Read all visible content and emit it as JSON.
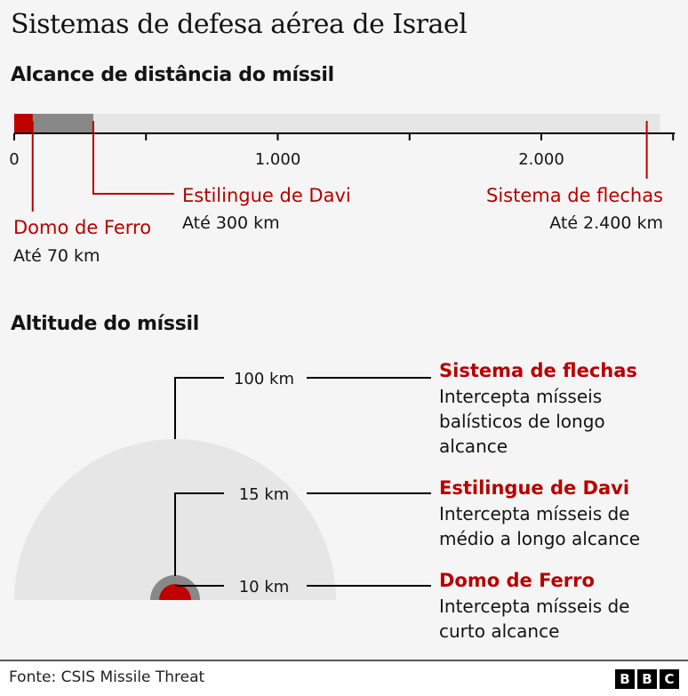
{
  "title": "Sistemas de defesa aérea de Israel",
  "colors": {
    "iron_dome": "#c00000",
    "davids_sling": "#888888",
    "arrow": "#e6e6e6",
    "accent_text": "#b80000",
    "background": "#f5f5f5"
  },
  "chart_data": [
    {
      "type": "bar",
      "title": "Alcance de distância do míssil",
      "xlim": [
        0,
        2450
      ],
      "ticks": [
        0,
        500,
        1000,
        1500,
        2000,
        2500
      ],
      "tick_labels": {
        "0": "0",
        "1000": "1.000",
        "2000": "2.000"
      },
      "series": [
        {
          "name": "Domo de Ferro",
          "value": 70,
          "label": "Até 70 km"
        },
        {
          "name": "Estilingue de Davi",
          "value": 300,
          "label": "Até 300 km"
        },
        {
          "name": "Sistema de flechas",
          "value": 2400,
          "label": "Até 2.400 km"
        }
      ]
    },
    {
      "type": "area",
      "title": "Altitude do míssil",
      "series": [
        {
          "name": "Sistema de flechas",
          "altitude": "100 km",
          "desc": "Intercepta mísseis balísticos de longo alcance",
          "desc_lines": [
            "Intercepta mísseis",
            "balísticos de longo",
            "alcance"
          ]
        },
        {
          "name": "Estilingue de Davi",
          "altitude": "15 km",
          "desc": "Intercepta mísseis de médio a longo alcance",
          "desc_lines": [
            "Intercepta mísseis de",
            "médio a longo alcance"
          ]
        },
        {
          "name": "Domo de Ferro",
          "altitude": "10 km",
          "desc": "Intercepta mísseis de curto alcance",
          "desc_lines": [
            "Intercepta mísseis de",
            "curto alcance"
          ]
        }
      ]
    }
  ],
  "footer": {
    "source": "Fonte: CSIS Missile Threat",
    "logo": "BBC",
    "logo_letters": [
      "B",
      "B",
      "C"
    ]
  }
}
